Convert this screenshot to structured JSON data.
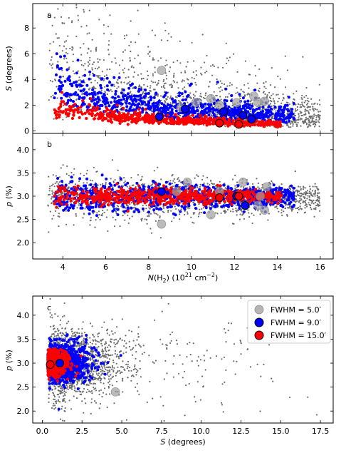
{
  "chart_data": [
    {
      "type": "scatter",
      "panel_label": "a",
      "xlabel": "",
      "ylabel": "S (degrees)",
      "xlim": [
        2.6,
        16.6
      ],
      "ylim": [
        -0.2,
        9.9
      ],
      "xticks": [
        4,
        6,
        8,
        10,
        12,
        14,
        16
      ],
      "yticks": [
        0,
        2,
        4,
        6,
        8
      ],
      "series": [
        {
          "name": "FWHM = 5.0′",
          "color": "#555555",
          "cloud": [
            [
              3.5,
              6.5
            ],
            [
              4.2,
              5.0
            ],
            [
              5.0,
              4.2
            ],
            [
              6.0,
              3.4
            ],
            [
              7.0,
              2.9
            ],
            [
              8.0,
              2.5
            ],
            [
              9.0,
              2.2
            ],
            [
              10.0,
              2.0
            ],
            [
              11.0,
              1.8
            ],
            [
              12.0,
              1.6
            ],
            [
              13.0,
              1.5
            ],
            [
              14.0,
              1.3
            ],
            [
              15.0,
              1.2
            ],
            [
              16.0,
              1.1
            ]
          ],
          "big": [
            [
              8.6,
              4.7
            ],
            [
              9.5,
              1.8
            ],
            [
              10.2,
              2.2
            ],
            [
              10.9,
              2.5
            ],
            [
              11.3,
              2.0
            ],
            [
              12.1,
              2.2
            ],
            [
              12.9,
              2.7
            ],
            [
              13.1,
              2.2
            ],
            [
              13.4,
              2.3
            ]
          ]
        },
        {
          "name": "FWHM = 9.0′",
          "color": "#0000ff",
          "cloud": [
            [
              3.6,
              4.0
            ],
            [
              4.3,
              3.2
            ],
            [
              5.0,
              2.8
            ],
            [
              6.0,
              2.4
            ],
            [
              7.0,
              2.1
            ],
            [
              8.0,
              1.9
            ],
            [
              9.0,
              1.7
            ],
            [
              10.0,
              1.6
            ],
            [
              11.0,
              1.5
            ],
            [
              12.0,
              1.4
            ],
            [
              13.0,
              1.3
            ],
            [
              14.0,
              1.2
            ],
            [
              14.6,
              1.1
            ]
          ],
          "big": [
            [
              8.5,
              1.1
            ],
            [
              9.7,
              1.7
            ],
            [
              11.5,
              1.5
            ],
            [
              12.4,
              1.2
            ],
            [
              12.8,
              0.9
            ]
          ]
        },
        {
          "name": "FWHM = 15.0′",
          "color": "#ff0000",
          "cloud": [
            [
              3.8,
              1.6
            ],
            [
              4.5,
              1.4
            ],
            [
              5.5,
              1.3
            ],
            [
              6.5,
              1.1
            ],
            [
              7.5,
              1.0
            ],
            [
              8.5,
              0.9
            ],
            [
              9.5,
              0.8
            ],
            [
              10.5,
              0.7
            ],
            [
              11.5,
              0.7
            ],
            [
              12.5,
              0.6
            ],
            [
              13.5,
              0.6
            ],
            [
              14.0,
              0.5
            ]
          ],
          "big": [
            [
              11.3,
              0.6
            ],
            [
              12.2,
              0.5
            ]
          ]
        }
      ]
    },
    {
      "type": "scatter",
      "panel_label": "b",
      "xlabel": "N(H2) (10^21 cm^-2)",
      "ylabel": "p (%)",
      "xlim": [
        2.6,
        16.6
      ],
      "ylim": [
        1.65,
        4.35
      ],
      "xticks": [
        4,
        6,
        8,
        10,
        12,
        14,
        16
      ],
      "yticks": [
        2.0,
        2.5,
        3.0,
        3.5,
        4.0
      ],
      "series": [
        {
          "name": "FWHM = 5.0′",
          "color": "#555555",
          "center": 3.0,
          "spread_lo": 0.75,
          "spread_hi": 0.55,
          "big": [
            [
              8.6,
              2.4
            ],
            [
              9.3,
              3.1
            ],
            [
              9.8,
              3.3
            ],
            [
              10.9,
              2.6
            ],
            [
              11.3,
              3.1
            ],
            [
              12.4,
              3.3
            ],
            [
              12.5,
              2.8
            ],
            [
              13.1,
              2.8
            ],
            [
              13.2,
              3.0
            ],
            [
              13.4,
              2.7
            ],
            [
              13.5,
              3.2
            ]
          ]
        },
        {
          "name": "FWHM = 9.0′",
          "color": "#0000ff",
          "center": 3.0,
          "spread_lo": 0.45,
          "spread_hi": 0.4,
          "big": [
            [
              8.6,
              3.1
            ],
            [
              12.1,
              3.0
            ],
            [
              12.5,
              2.8
            ]
          ]
        },
        {
          "name": "FWHM = 15.0′",
          "color": "#ff0000",
          "center": 3.0,
          "spread_lo": 0.25,
          "spread_hi": 0.25,
          "big": [
            [
              11.3,
              2.97
            ],
            [
              12.2,
              3.0
            ]
          ]
        }
      ]
    },
    {
      "type": "scatter",
      "panel_label": "c",
      "xlabel": "S (degrees)",
      "ylabel": "p (%)",
      "xlim": [
        -0.6,
        18.3
      ],
      "ylim": [
        1.75,
        4.4
      ],
      "xticks": [
        0.0,
        2.5,
        5.0,
        7.5,
        10.0,
        12.5,
        15.0,
        17.5
      ],
      "yticks": [
        2.0,
        2.5,
        3.0,
        3.5,
        4.0
      ],
      "legend": {
        "position": "top-right",
        "entries": [
          "FWHM = 5.0′",
          "FWHM = 9.0′",
          "FWHM = 15.0′"
        ]
      },
      "series": [
        {
          "name": "FWHM = 5.0′",
          "color": "#555555",
          "big": [
            [
              4.6,
              2.4
            ]
          ]
        },
        {
          "name": "FWHM = 9.0′",
          "color": "#0000ff",
          "big": [
            [
              1.1,
              3.0
            ]
          ]
        },
        {
          "name": "FWHM = 15.0′",
          "color": "#ff0000",
          "big": [
            [
              0.5,
              2.97
            ]
          ]
        }
      ]
    }
  ],
  "labels": {
    "a_ylabel": "S (degrees)",
    "b_ylabel": "p (%)",
    "b_xlabel": "N(H2) (10^21 cm^-2)",
    "c_ylabel": "p (%)",
    "c_xlabel": "S (degrees)",
    "legend_1": "FWHM = 5.0′",
    "legend_2": "FWHM = 9.0′",
    "legend_3": "FWHM = 15.0′"
  }
}
